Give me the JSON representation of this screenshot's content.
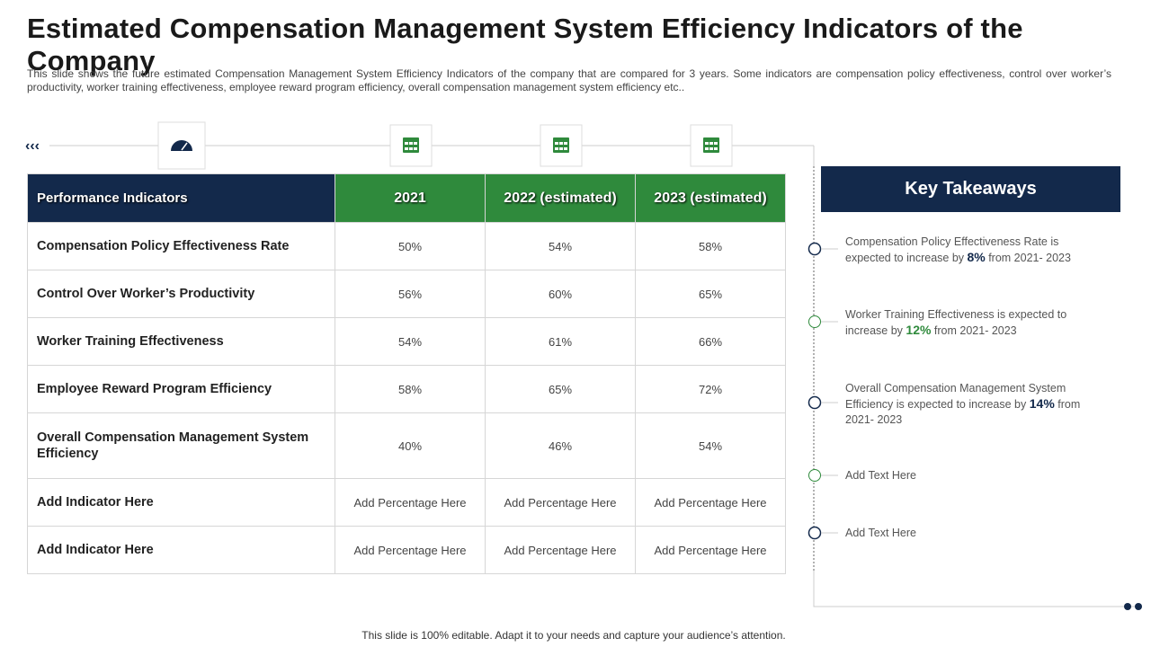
{
  "title": "Estimated Compensation Management System Efficiency Indicators of the Company",
  "description": "This slide shows the future estimated Compensation Management System Efficiency Indicators of the company that are compared for 3 years. Some indicators are compensation policy effectiveness, control over worker’s productivity, worker training effectiveness, employee reward program efficiency, overall compensation management system efficiency etc..",
  "table": {
    "header": [
      "Performance Indicators",
      "2021",
      "2022 (estimated)",
      "2023 (estimated)"
    ],
    "rows": [
      [
        "Compensation Policy Effectiveness Rate",
        "50%",
        "54%",
        "58%"
      ],
      [
        "Control Over Worker’s Productivity",
        "56%",
        "60%",
        "65%"
      ],
      [
        "Worker Training Effectiveness",
        "54%",
        "61%",
        "66%"
      ],
      [
        "Employee Reward Program Efficiency",
        "58%",
        "65%",
        "72%"
      ],
      [
        "Overall Compensation Management System Efficiency",
        "40%",
        "46%",
        "54%"
      ],
      [
        "Add Indicator Here",
        "Add Percentage Here",
        "Add Percentage Here",
        "Add Percentage Here"
      ],
      [
        "Add Indicator Here",
        "Add Percentage Here",
        "Add Percentage Here",
        "Add Percentage Here"
      ]
    ]
  },
  "takeaways": {
    "title": "Key Takeaways",
    "items": [
      {
        "before": "Compensation Policy Effectiveness Rate is expected to increase by ",
        "highlight": "8%",
        "after": " from 2021- 2023",
        "color": "#13294b"
      },
      {
        "before": "Worker Training Effectiveness is expected to increase by ",
        "highlight": "12%",
        "after": " from 2021- 2023",
        "color": "#2f8a3c"
      },
      {
        "before": "Overall Compensation Management System Efficiency is expected to increase by ",
        "highlight": "14%",
        "after": " from 2021- 2023",
        "color": "#13294b"
      },
      {
        "before": "Add Text Here"
      },
      {
        "before": "Add Text Here"
      }
    ]
  },
  "footer": "This slide is 100% editable. Adapt it to your needs and capture your audience’s attention."
}
